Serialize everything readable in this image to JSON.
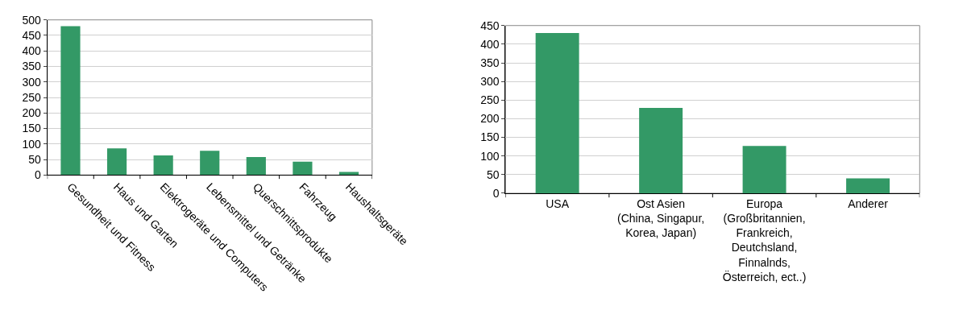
{
  "chart_data": [
    {
      "type": "bar",
      "categories": [
        "Gesundheit und Fitness",
        "Haus und Garten",
        "Elektrogeräte und Computers",
        "Lebensmittel und Getränke",
        "Querschnittsprodukte",
        "Fahrzeug",
        "Haushaltsgeräte"
      ],
      "values": [
        480,
        86,
        63,
        78,
        58,
        43,
        10
      ],
      "color": "#339966",
      "ylim": [
        0,
        500
      ],
      "yticks": [
        0,
        50,
        100,
        150,
        200,
        250,
        300,
        350,
        400,
        450,
        500
      ],
      "grid": "y"
    },
    {
      "type": "bar",
      "categories": [
        "USA",
        "Ost Asien\n(China, Singapur,\nKorea, Japan)",
        "Europa\n(Großbritannien,\nFrankreich,\nDeutchsland,\nFinnalnds,\nÖsterreich, ect..)",
        "Anderer"
      ],
      "values": [
        430,
        229,
        127,
        40
      ],
      "color": "#339966",
      "ylim": [
        0,
        450
      ],
      "yticks": [
        0,
        50,
        100,
        150,
        200,
        250,
        300,
        350,
        400,
        450
      ],
      "grid": "y"
    }
  ]
}
